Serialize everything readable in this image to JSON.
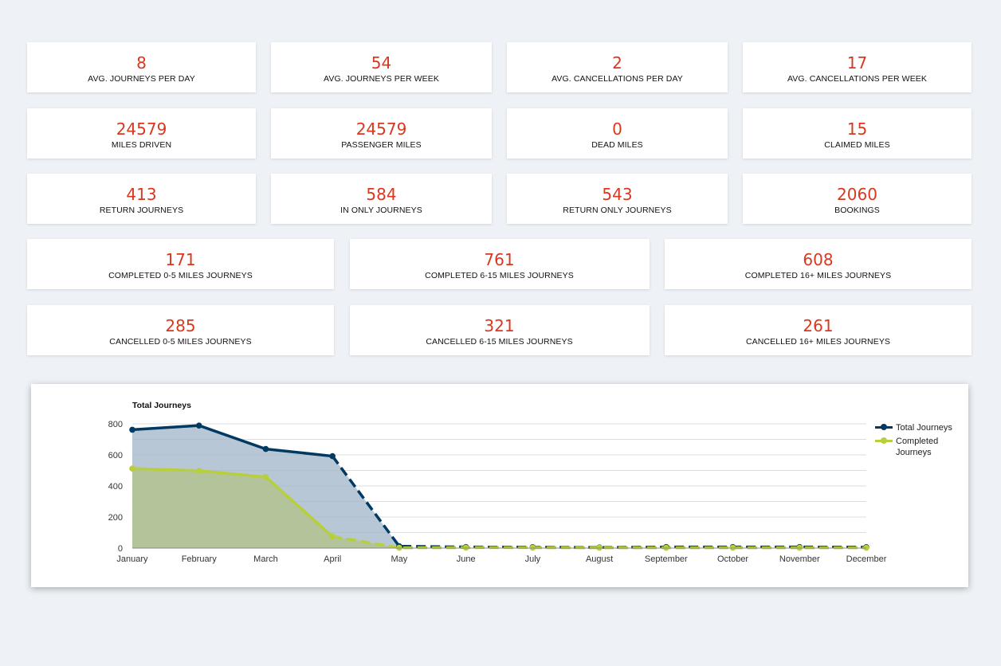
{
  "stats": {
    "row1": [
      {
        "value": "8",
        "label": "AVG. JOURNEYS PER DAY"
      },
      {
        "value": "54",
        "label": "AVG. JOURNEYS PER WEEK"
      },
      {
        "value": "2",
        "label": "AVG. CANCELLATIONS PER DAY"
      },
      {
        "value": "17",
        "label": "AVG. CANCELLATIONS PER WEEK"
      }
    ],
    "row2": [
      {
        "value": "24579",
        "label": "MILES DRIVEN"
      },
      {
        "value": "24579",
        "label": "PASSENGER MILES"
      },
      {
        "value": "0",
        "label": "DEAD MILES"
      },
      {
        "value": "15",
        "label": "CLAIMED MILES"
      }
    ],
    "row3": [
      {
        "value": "413",
        "label": "RETURN JOURNEYS"
      },
      {
        "value": "584",
        "label": "IN ONLY JOURNEYS"
      },
      {
        "value": "543",
        "label": "RETURN ONLY JOURNEYS"
      },
      {
        "value": "2060",
        "label": "BOOKINGS"
      }
    ],
    "row4": [
      {
        "value": "171",
        "label": "COMPLETED 0-5 MILES JOURNEYS"
      },
      {
        "value": "761",
        "label": "COMPLETED 6-15 MILES JOURNEYS"
      },
      {
        "value": "608",
        "label": "COMPLETED 16+ MILES JOURNEYS"
      }
    ],
    "row5": [
      {
        "value": "285",
        "label": "CANCELLED 0-5 MILES JOURNEYS"
      },
      {
        "value": "321",
        "label": "CANCELLED 6-15 MILES JOURNEYS"
      },
      {
        "value": "261",
        "label": "CANCELLED 16+ MILES JOURNEYS"
      }
    ]
  },
  "colors": {
    "stat_value": "#d9381e",
    "total_line": "#003a63",
    "total_fill": "#9fb4c7",
    "completed_line": "#b8cf3c",
    "completed_fill": "#b3c28f",
    "grid": "#dddddd"
  },
  "chart_data": {
    "type": "area",
    "title": "Total Journeys",
    "xlabel": "",
    "ylabel": "",
    "categories": [
      "January",
      "February",
      "March",
      "April",
      "May",
      "June",
      "July",
      "August",
      "September",
      "October",
      "November",
      "December"
    ],
    "yticks": [
      "0",
      "200",
      "400",
      "600",
      "800"
    ],
    "ylim": [
      0,
      800
    ],
    "grid": true,
    "legend_position": "right",
    "series": [
      {
        "name": "Total Journeys",
        "values": [
          762,
          789,
          638,
          592,
          12,
          7,
          6,
          4,
          7,
          7,
          7,
          6
        ],
        "solid_through_index": 3
      },
      {
        "name": "Completed Journeys",
        "values": [
          512,
          498,
          458,
          75,
          2,
          3,
          3,
          2,
          2,
          2,
          2,
          2
        ],
        "solid_through_index": 3
      }
    ]
  }
}
